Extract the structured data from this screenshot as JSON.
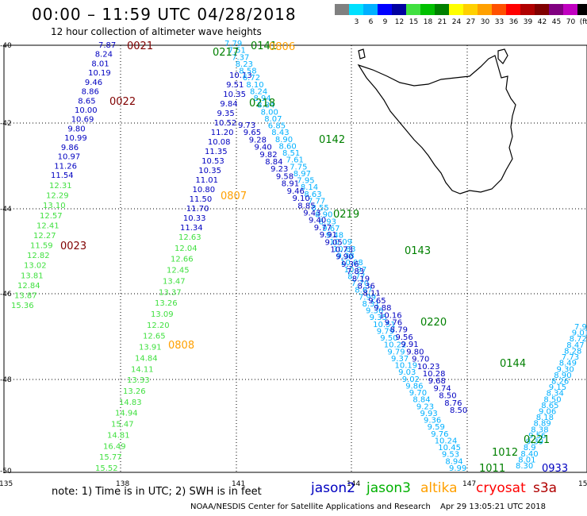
{
  "title": "00:00 – 11:59 UTC 04/28/2018",
  "subtitle": "12 hour collection of altimeter wave heights",
  "scale": {
    "labels": [
      "",
      "3",
      "6",
      "9",
      "12",
      "15",
      "18",
      "21",
      "24",
      "27",
      "30",
      "33",
      "36",
      "39",
      "42",
      "45",
      "70",
      "(ft)"
    ],
    "colors": [
      "#808080",
      "#00e0ff",
      "#00b0ff",
      "#0000ff",
      "#0000a0",
      "#40e040",
      "#00c000",
      "#008000",
      "#ffff00",
      "#ffd000",
      "#ffa000",
      "#ff5000",
      "#ff0000",
      "#b00000",
      "#800000",
      "#800080",
      "#c000c0",
      "#000000"
    ]
  },
  "axes": {
    "lat_labels": [
      "-40",
      "-42",
      "-44",
      "-46",
      "-48",
      "-50"
    ],
    "lon_labels": [
      "135",
      "138",
      "141",
      "144",
      "147",
      "150"
    ]
  },
  "tracks": [
    {
      "id": "jason2-a",
      "color": "#0000c0",
      "points": [
        {
          "v": "7.87"
        },
        {
          "v": "8.24"
        },
        {
          "v": "8.01"
        },
        {
          "v": "10.19"
        },
        {
          "v": "9.46"
        },
        {
          "v": "8.86"
        },
        {
          "v": "8.65"
        },
        {
          "v": "10.00"
        },
        {
          "v": "10.69"
        },
        {
          "v": "9.80"
        },
        {
          "v": "10.99"
        },
        {
          "v": "9.86"
        },
        {
          "v": "10.97"
        },
        {
          "v": "11.26"
        },
        {
          "v": "11.54"
        }
      ]
    },
    {
      "id": "jason3-a",
      "color": "#40e040",
      "points": [
        {
          "v": "12.31"
        },
        {
          "v": "12.29"
        },
        {
          "v": "13.10"
        },
        {
          "v": "12.57"
        },
        {
          "v": "12.41"
        },
        {
          "v": "12.27"
        },
        {
          "v": "11.59"
        },
        {
          "v": "12.82"
        },
        {
          "v": "13.02"
        },
        {
          "v": "13.81"
        },
        {
          "v": "12.84"
        },
        {
          "v": "13.87"
        },
        {
          "v": "15.36"
        }
      ]
    },
    {
      "id": "jason2-b",
      "color": "#0000c0",
      "points": [
        {
          "v": "10.13"
        },
        {
          "v": "9.51"
        },
        {
          "v": "10.35"
        },
        {
          "v": "9.84"
        },
        {
          "v": "9.35"
        },
        {
          "v": "10.52"
        },
        {
          "v": "11.20"
        },
        {
          "v": "10.08"
        },
        {
          "v": "11.35"
        },
        {
          "v": "10.53"
        },
        {
          "v": "10.35"
        },
        {
          "v": "11.01"
        },
        {
          "v": "10.80"
        },
        {
          "v": "11.50"
        },
        {
          "v": "11.70"
        },
        {
          "v": "10.33"
        },
        {
          "v": "11.34"
        }
      ]
    },
    {
      "id": "jason3-b",
      "color": "#40e040",
      "points": [
        {
          "v": "12.63"
        },
        {
          "v": "12.04"
        },
        {
          "v": "12.66"
        },
        {
          "v": "12.45"
        },
        {
          "v": "13.47"
        },
        {
          "v": "13.37"
        },
        {
          "v": "13.26"
        },
        {
          "v": "13.09"
        },
        {
          "v": "12.20"
        },
        {
          "v": "12.65"
        },
        {
          "v": "13.91"
        },
        {
          "v": "14.84"
        },
        {
          "v": "14.11"
        },
        {
          "v": "13.33"
        },
        {
          "v": "13.26"
        },
        {
          "v": "14.83"
        },
        {
          "v": "14.94"
        },
        {
          "v": "15.47"
        },
        {
          "v": "14.81"
        },
        {
          "v": "16.49"
        },
        {
          "v": "15.77"
        },
        {
          "v": "15.52"
        }
      ]
    },
    {
      "id": "altika-a",
      "color": "#00b0ff",
      "points": [
        {
          "v": "7.79"
        },
        {
          "v": "7.51"
        },
        {
          "v": "7.37"
        },
        {
          "v": "8.23"
        },
        {
          "v": "8.58"
        },
        {
          "v": "6.72"
        },
        {
          "v": "8.10"
        },
        {
          "v": "8.24"
        },
        {
          "v": "8.94"
        },
        {
          "v": "8.84"
        },
        {
          "v": "8.00"
        },
        {
          "v": "8.07"
        },
        {
          "v": "6.85"
        },
        {
          "v": "8.43"
        },
        {
          "v": "8.90"
        },
        {
          "v": "8.60"
        },
        {
          "v": "8.51"
        },
        {
          "v": "7.61"
        },
        {
          "v": "7.75"
        },
        {
          "v": "8.97"
        },
        {
          "v": "7.95"
        },
        {
          "v": "8.14"
        },
        {
          "v": "8.63"
        },
        {
          "v": "7.77"
        },
        {
          "v": "8.55"
        },
        {
          "v": "8.90"
        },
        {
          "v": "8.93"
        },
        {
          "v": "9.67"
        },
        {
          "v": "9.48"
        },
        {
          "v": "10.09"
        },
        {
          "v": "10.83"
        },
        {
          "v": "9.38"
        },
        {
          "v": "10.08"
        },
        {
          "v": "10.97"
        },
        {
          "v": "8.77"
        },
        {
          "v": "7.70"
        },
        {
          "v": "8.67"
        },
        {
          "v": "7.99"
        },
        {
          "v": "8.31"
        },
        {
          "v": "9.36"
        },
        {
          "v": "9.35"
        },
        {
          "v": "10.51"
        },
        {
          "v": "9.79"
        },
        {
          "v": "9.50"
        },
        {
          "v": "10.22"
        },
        {
          "v": "9.79"
        },
        {
          "v": "9.37"
        },
        {
          "v": "10.19"
        },
        {
          "v": "9.03"
        },
        {
          "v": "9.02"
        },
        {
          "v": "9.86"
        },
        {
          "v": "9.70"
        },
        {
          "v": "8.84"
        },
        {
          "v": "9.23"
        },
        {
          "v": "9.93"
        },
        {
          "v": "9.36"
        },
        {
          "v": "9.59"
        },
        {
          "v": "9.76"
        },
        {
          "v": "10.24"
        },
        {
          "v": "10.45"
        },
        {
          "v": "9.53"
        },
        {
          "v": "8.94"
        },
        {
          "v": "9.99"
        }
      ]
    },
    {
      "id": "jason2-c",
      "color": "#0000c0",
      "points": [
        {
          "v": "9.73"
        },
        {
          "v": "9.65"
        },
        {
          "v": "9.28"
        },
        {
          "v": "9.40"
        },
        {
          "v": "9.82"
        },
        {
          "v": "8.84"
        },
        {
          "v": "9.23"
        },
        {
          "v": "9.58"
        },
        {
          "v": "8.91"
        },
        {
          "v": "9.46"
        },
        {
          "v": "9.10"
        },
        {
          "v": "8.85"
        },
        {
          "v": "9.43"
        },
        {
          "v": "9.40"
        },
        {
          "v": "9.77"
        },
        {
          "v": "9.91"
        },
        {
          "v": "9.05"
        },
        {
          "v": "10.73"
        },
        {
          "v": "9.90"
        },
        {
          "v": "9.36"
        },
        {
          "v": "7.83"
        },
        {
          "v": "8.19"
        },
        {
          "v": "8.36"
        },
        {
          "v": "8.11"
        },
        {
          "v": "9.65"
        },
        {
          "v": "9.88"
        },
        {
          "v": "10.16"
        },
        {
          "v": "9.76"
        },
        {
          "v": "8.79"
        },
        {
          "v": "9.56"
        },
        {
          "v": "9.91"
        },
        {
          "v": "9.80"
        },
        {
          "v": "9.70"
        },
        {
          "v": "10.23"
        },
        {
          "v": "10.28"
        },
        {
          "v": "9.68"
        },
        {
          "v": "9.74"
        },
        {
          "v": "8.50"
        },
        {
          "v": "8.76"
        },
        {
          "v": "8.50"
        }
      ]
    },
    {
      "id": "altika-b",
      "color": "#00b0ff",
      "points": [
        {
          "v": "7.9"
        },
        {
          "v": "9.01"
        },
        {
          "v": "8.72"
        },
        {
          "v": "8.47"
        },
        {
          "v": "8.28"
        },
        {
          "v": "7.73"
        },
        {
          "v": "8.49"
        },
        {
          "v": "9.30"
        },
        {
          "v": "8.90"
        },
        {
          "v": "8.26"
        },
        {
          "v": "9.15"
        },
        {
          "v": "8.34"
        },
        {
          "v": "8.50"
        },
        {
          "v": "8.65"
        },
        {
          "v": "9.06"
        },
        {
          "v": "8.18"
        },
        {
          "v": "8.89"
        },
        {
          "v": "8.38"
        },
        {
          "v": "9.56"
        },
        {
          "v": "9.39"
        },
        {
          "v": "8.9"
        },
        {
          "v": "8.40"
        },
        {
          "v": "8.01"
        },
        {
          "v": "8.30"
        }
      ]
    }
  ],
  "time_labels": [
    {
      "t": "0021",
      "color": "#800000"
    },
    {
      "t": "0022",
      "color": "#800000"
    },
    {
      "t": "0023",
      "color": "#800000"
    },
    {
      "t": "0141",
      "color": "#008000"
    },
    {
      "t": "0217",
      "color": "#008000"
    },
    {
      "t": "0218",
      "color": "#008000"
    },
    {
      "t": "0142",
      "color": "#008000"
    },
    {
      "t": "0219",
      "color": "#008000"
    },
    {
      "t": "0143",
      "color": "#008000"
    },
    {
      "t": "0220",
      "color": "#008000"
    },
    {
      "t": "0144",
      "color": "#008000"
    },
    {
      "t": "0221",
      "color": "#008000"
    },
    {
      "t": "1011",
      "color": "#008000"
    },
    {
      "t": "1012",
      "color": "#008000"
    },
    {
      "t": "0806",
      "color": "#ffa000"
    },
    {
      "t": "0807",
      "color": "#ffa000"
    },
    {
      "t": "0808",
      "color": "#ffa000"
    },
    {
      "t": "0933",
      "color": "#0000c0"
    }
  ],
  "note": "note:  1) Time is in UTC;  2) SWH is in feet",
  "satellites": [
    {
      "name": "jason2",
      "color": "#0000c0"
    },
    {
      "name": "jason3",
      "color": "#00b000"
    },
    {
      "name": "altika",
      "color": "#ffa000"
    },
    {
      "name": "cryosat",
      "color": "#ff0000"
    },
    {
      "name": "s3a",
      "color": "#b00000"
    }
  ],
  "credit": "NOAA/NESDIS Center for Satellite Applications and Research",
  "timestamp": "Apr 29 13:05:21 UTC 2018"
}
